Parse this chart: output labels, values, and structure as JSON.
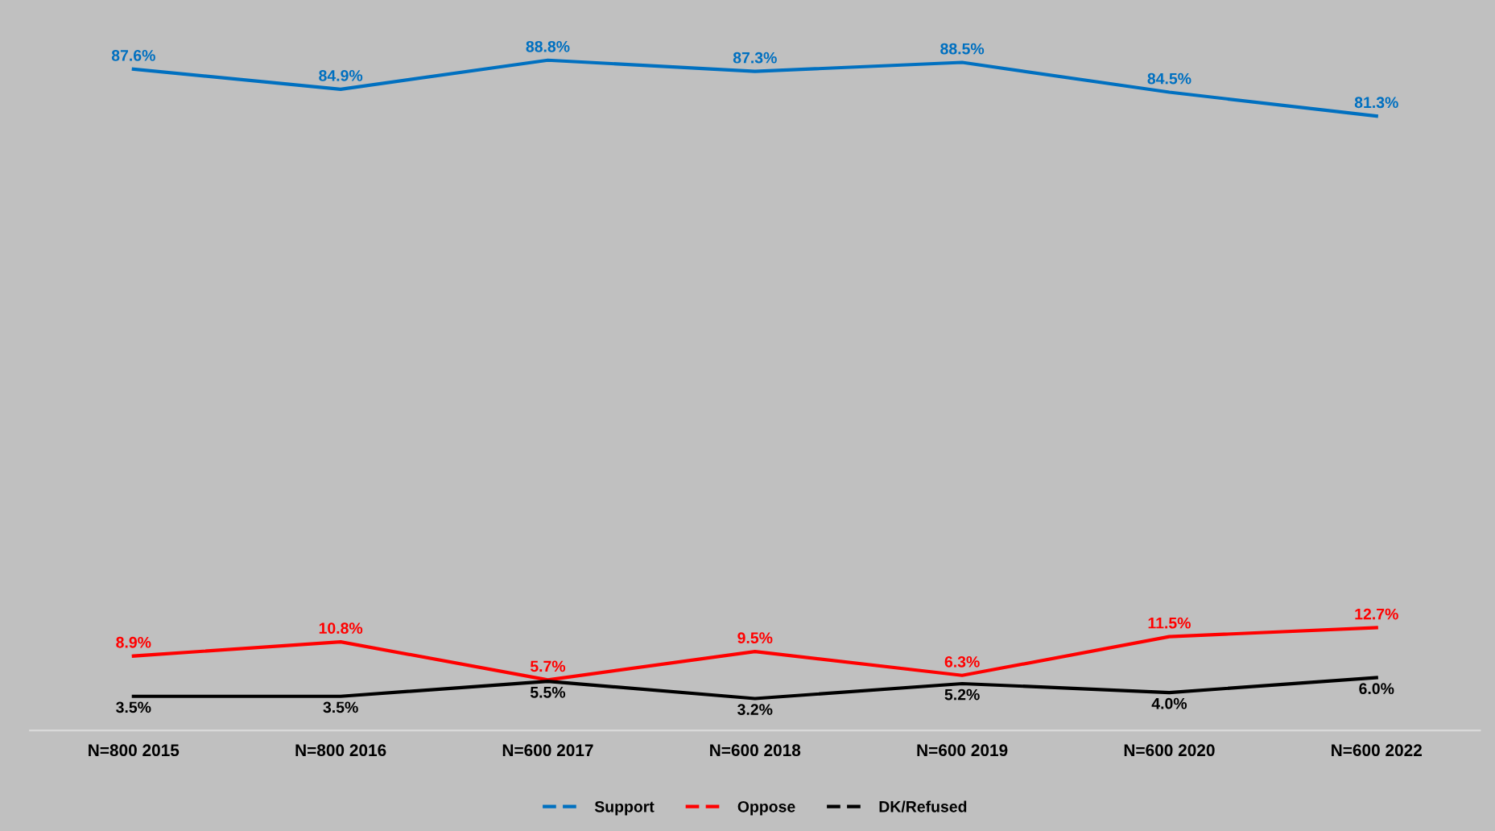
{
  "chart_data": {
    "type": "line",
    "categories": [
      "N=800 2015",
      "N=800 2016",
      "N=600 2017",
      "N=600 2018",
      "N=600 2019",
      "N=600 2020",
      "N=600 2022"
    ],
    "series": [
      {
        "name": "Support",
        "color": "#0070c0",
        "values": [
          87.6,
          84.9,
          88.8,
          87.3,
          88.5,
          84.5,
          81.3
        ],
        "value_labels": [
          "87.6%",
          "84.9%",
          "88.8%",
          "87.3%",
          "88.5%",
          "84.5%",
          "81.3%"
        ]
      },
      {
        "name": "Oppose",
        "color": "#ff0000",
        "values": [
          8.9,
          10.8,
          5.7,
          9.5,
          6.3,
          11.5,
          12.7
        ],
        "value_labels": [
          "8.9%",
          "10.8%",
          "5.7%",
          "9.5%",
          "6.3%",
          "11.5%",
          "12.7%"
        ]
      },
      {
        "name": "DK/Refused",
        "color": "#000000",
        "values": [
          3.5,
          3.5,
          5.5,
          3.2,
          5.2,
          4.0,
          6.0
        ],
        "value_labels": [
          "3.5%",
          "3.5%",
          "5.5%",
          "3.2%",
          "5.2%",
          "4.0%",
          "6.0%"
        ]
      }
    ],
    "tick_labels": "x",
    "legend": "bottom",
    "grid": false,
    "marker": "none",
    "line_style": "solid"
  }
}
